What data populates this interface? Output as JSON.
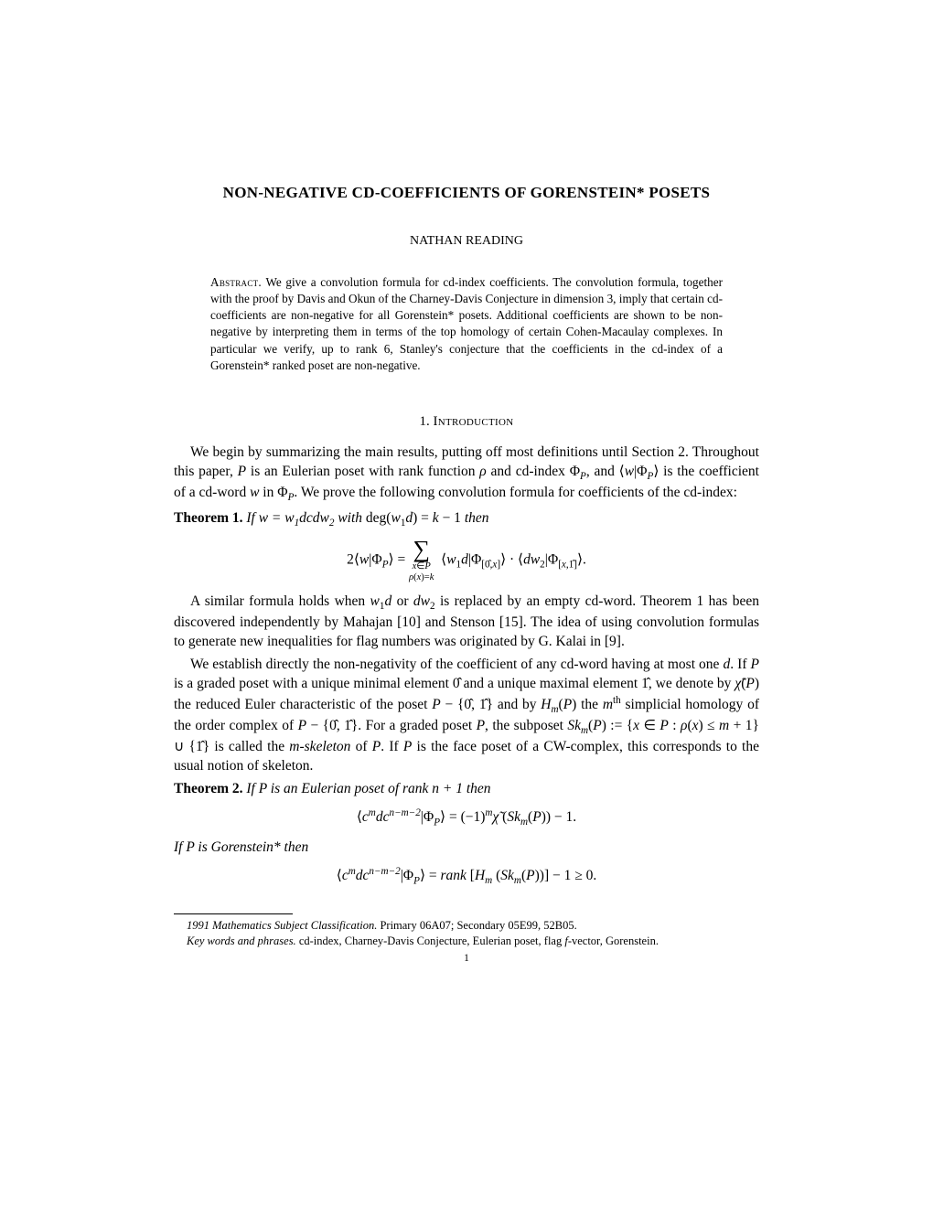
{
  "title": "NON-NEGATIVE CD-COEFFICIENTS OF GORENSTEIN* POSETS",
  "author": "NATHAN READING",
  "abstract": {
    "label": "Abstract.",
    "text": "We give a convolution formula for cd-index coefficients. The convolution formula, together with the proof by Davis and Okun of the Charney-Davis Conjecture in dimension 3, imply that certain cd-coefficients are non-negative for all Gorenstein* posets. Additional coefficients are shown to be non-negative by interpreting them in terms of the top homology of certain Cohen-Macaulay complexes. In particular we verify, up to rank 6, Stanley's conjecture that the coefficients in the cd-index of a Gorenstein* ranked poset are non-negative."
  },
  "section": {
    "num": "1.",
    "title": "Introduction"
  },
  "p1": "We begin by summarizing the main results, putting off most definitions until Section 2. Throughout this paper, P is an Eulerian poset with rank function ρ and cd-index Φ_P, and ⟨w|Φ_P⟩ is the coefficient of a cd-word w in Φ_P. We prove the following convolution formula for coefficients of the cd-index:",
  "thm1": {
    "label": "Theorem 1.",
    "stmt": "If w = w₁dcdw₂ with deg(w₁d) = k − 1 then"
  },
  "formula1": {
    "lhs": "2⟨w|Φ_P⟩ =",
    "sub1": "x∈P",
    "sub2": "ρ(x)=k",
    "rhs": "⟨w₁d|Φ_[0̂,x]⟩ · ⟨dw₂|Φ_[x,1̂]⟩."
  },
  "p2": "A similar formula holds when w₁d or dw₂ is replaced by an empty cd-word. Theorem 1 has been discovered independently by Mahajan [10] and Stenson [15]. The idea of using convolution formulas to generate new inequalities for flag numbers was originated by G. Kalai in [9].",
  "p3": "We establish directly the non-negativity of the coefficient of any cd-word having at most one d. If P is a graded poset with a unique minimal element 0̂ and a unique maximal element 1̂, we denote by χ̃(P) the reduced Euler characteristic of the poset P − {0̂, 1̂} and by Hₘ(P) the mᵗʰ simplicial homology of the order complex of P − {0̂, 1̂}. For a graded poset P, the subposet Skₘ(P) := {x ∈ P : ρ(x) ≤ m + 1} ∪ {1̂} is called the m-skeleton of P. If P is the face poset of a CW-complex, this corresponds to the usual notion of skeleton.",
  "thm2": {
    "label": "Theorem 2.",
    "stmt": "If P is an Eulerian poset of rank n + 1 then"
  },
  "formula2": "⟨cᵐdcⁿ⁻ᵐ⁻²|Φ_P⟩ = (−1)ᵐχ̃ (Skₘ(P)) − 1.",
  "p4": "If P is Gorenstein* then",
  "formula3": "⟨cᵐdcⁿ⁻ᵐ⁻²|Φ_P⟩ = rank [Hₘ (Skₘ(P))] − 1 ≥ 0.",
  "footnotes": {
    "msc_label": "1991 Mathematics Subject Classification.",
    "msc": " Primary 06A07; Secondary 05E99, 52B05.",
    "kw_label": "Key words and phrases.",
    "kw": " cd-index, Charney-Davis Conjecture, Eulerian poset, flag f-vector, Gorenstein."
  },
  "pagenum": "1"
}
